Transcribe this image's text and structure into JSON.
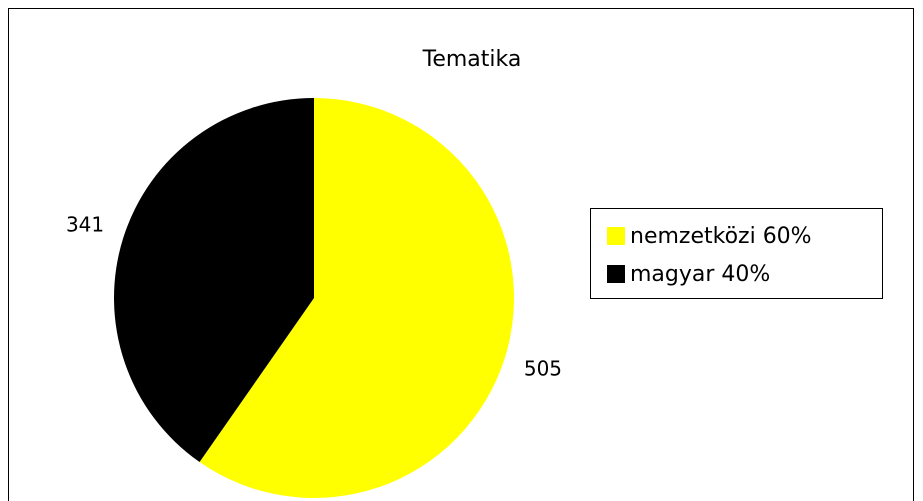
{
  "chart_data": {
    "type": "pie",
    "title": "Tematika",
    "categories": [
      "nemzetközi 60%",
      "magyar 40%"
    ],
    "values": [
      505,
      341
    ],
    "colors": [
      "#ffff00",
      "#000000"
    ],
    "legend": "right"
  }
}
